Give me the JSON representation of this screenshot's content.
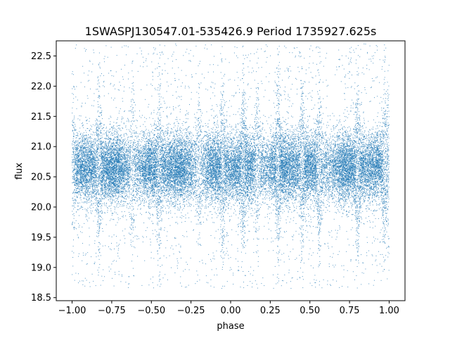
{
  "chart_data": {
    "type": "scatter",
    "title": "1SWASPJ130547.01-535426.9 Period 1735927.625s",
    "xlabel": "phase",
    "ylabel": "flux",
    "xlim": [
      -1.1,
      1.1
    ],
    "ylim": [
      18.45,
      22.75
    ],
    "x_ticks": [
      -1.0,
      -0.75,
      -0.5,
      -0.25,
      0.0,
      0.25,
      0.5,
      0.75,
      1.0
    ],
    "x_tick_labels": [
      "−1.00",
      "−0.75",
      "−0.50",
      "−0.25",
      "0.00",
      "0.25",
      "0.50",
      "0.75",
      "1.00"
    ],
    "y_ticks": [
      18.5,
      19.0,
      19.5,
      20.0,
      20.5,
      21.0,
      21.5,
      22.0,
      22.5
    ],
    "y_tick_labels": [
      "18.5",
      "19.0",
      "19.5",
      "20.0",
      "20.5",
      "21.0",
      "21.5",
      "22.0",
      "22.5"
    ],
    "grid": false,
    "legend": "none",
    "point_color": "#1f77b4",
    "series": [
      {
        "x_range": [
          -1.0,
          1.0
        ],
        "approx_points": 30000,
        "core_band": [
          20.2,
          21.2
        ],
        "center_flux": 20.65,
        "scatter_extent": [
          18.65,
          22.7
        ],
        "dense_streak_phases": [
          -1.0,
          -0.83,
          -0.62,
          -0.45,
          -0.2,
          -0.05,
          0.08,
          0.17,
          0.3,
          0.45,
          0.56,
          0.8,
          0.97,
          1.0
        ]
      }
    ]
  }
}
